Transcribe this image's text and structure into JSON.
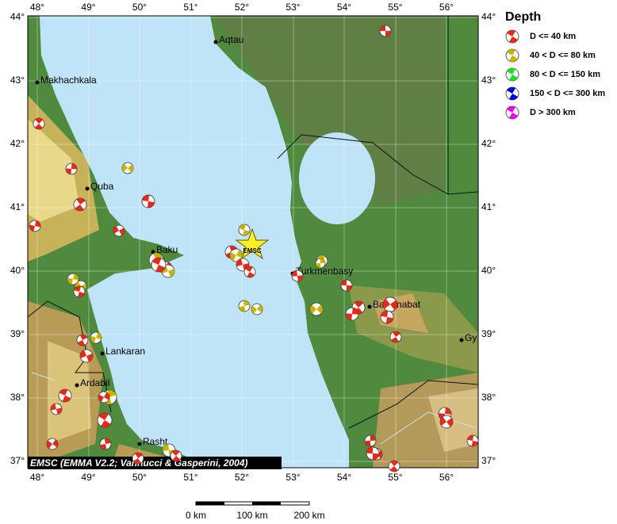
{
  "map": {
    "lon_ticks": [
      "48°",
      "49°",
      "50°",
      "51°",
      "52°",
      "53°",
      "54°",
      "55°",
      "56°"
    ],
    "lat_ticks": [
      "44°",
      "43°",
      "42°",
      "41°",
      "40°",
      "39°",
      "38°",
      "37°"
    ],
    "cities": [
      {
        "name": "Aqtau"
      },
      {
        "name": "Makhachkala"
      },
      {
        "name": "Quba"
      },
      {
        "name": "Baku"
      },
      {
        "name": "Turkmenbasy"
      },
      {
        "name": "Balkanabat"
      },
      {
        "name": "Lankaran"
      },
      {
        "name": "Ardabil"
      },
      {
        "name": "Rasht"
      },
      {
        "name": "Gy"
      }
    ],
    "star_label": "EMSC",
    "credit": "EMSC (EMMA V2.2; Vannucci & Gasperini, 2004)",
    "scale_labels": [
      "0 km",
      "100 km",
      "200 km"
    ]
  },
  "legend": {
    "title": "Depth",
    "items": [
      {
        "label": "D <= 40 km",
        "color": "#e62a1a"
      },
      {
        "label": "40 < D <= 80 km",
        "color": "#c8b400"
      },
      {
        "label": "80 < D <= 150 km",
        "color": "#22dd22"
      },
      {
        "label": "150 < D <= 300 km",
        "color": "#0000dd"
      },
      {
        "label": "D > 300 km",
        "color": "#ee00ee"
      }
    ]
  }
}
